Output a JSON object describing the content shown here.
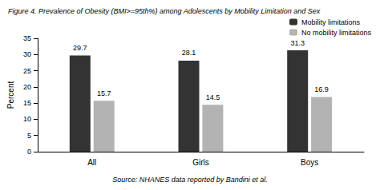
{
  "chart_data": {
    "type": "bar",
    "title": "Figure 4. Prevalence of Obesity (BMI>=95th%) among Adolescents by Mobility Limitation and Sex",
    "y_label": "Percent",
    "annotations": [
      "Source: NHANES data reported by Bandini et al."
    ],
    "categories": [
      "All",
      "Girls",
      "Boys"
    ],
    "series": [
      {
        "name": "Mobility limitations",
        "color": "#333333",
        "values": [
          29.7,
          28.1,
          31.3
        ]
      },
      {
        "name": "No mobility limitations",
        "color": "#b3b3b3",
        "values": [
          15.7,
          14.5,
          16.9
        ]
      }
    ],
    "ylim": [
      0,
      35
    ],
    "yticks": [
      0,
      5,
      10,
      15,
      20,
      25,
      30,
      35
    ],
    "grid": false,
    "legend": "top-right",
    "data_labels": true
  }
}
